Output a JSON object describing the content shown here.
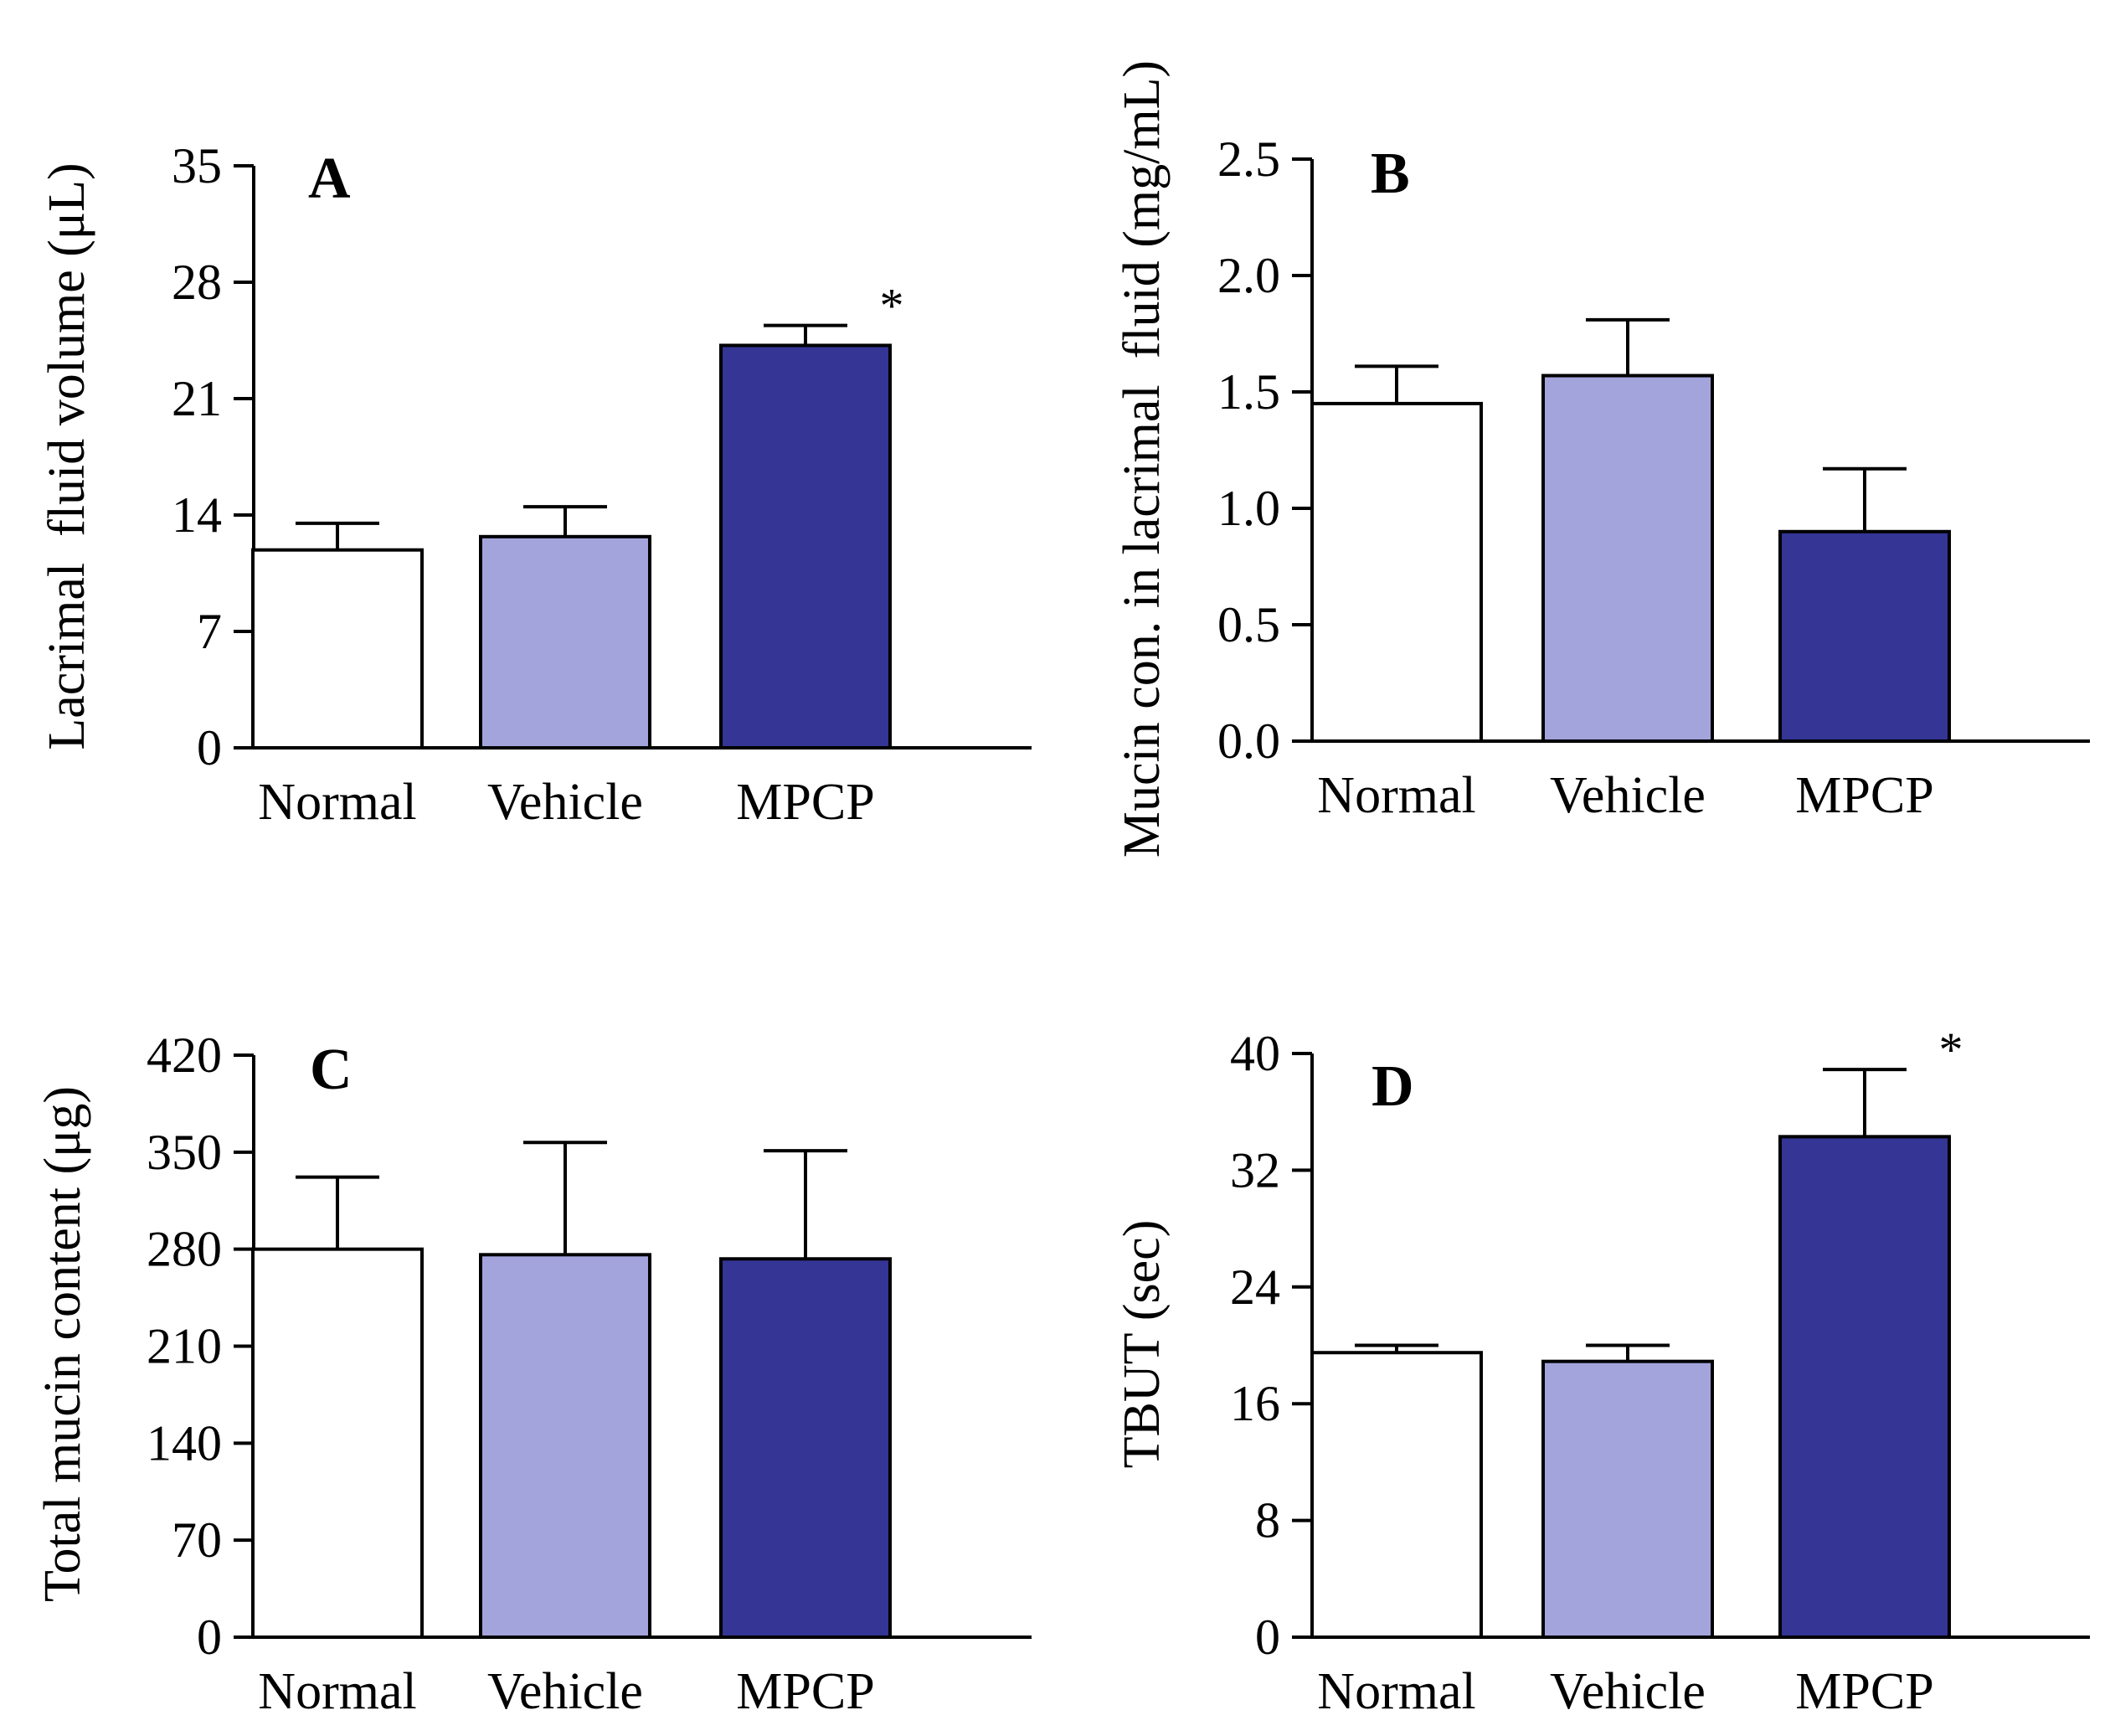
{
  "colors": {
    "normal": "#ffffff",
    "vehicle": "#a4a4dd",
    "mpcp": "#343595",
    "ink": "#000000"
  },
  "chart_data": [
    {
      "type": "bar",
      "panel": "A",
      "categories": [
        "Normal",
        "Vehicle",
        "MPCP"
      ],
      "values": [
        11.9,
        12.7,
        24.2
      ],
      "errors": [
        1.6,
        1.8,
        1.2
      ],
      "significance": [
        "",
        "",
        "*"
      ],
      "ylabel": "Lacrimal  fluid volume (μL)",
      "ylim": [
        0,
        35
      ],
      "yticks": [
        0,
        7,
        14,
        21,
        28,
        35
      ],
      "ytick_labels": [
        "0",
        "7",
        "14",
        "21",
        "28",
        "35"
      ]
    },
    {
      "type": "bar",
      "panel": "B",
      "categories": [
        "Normal",
        "Vehicle",
        "MPCP"
      ],
      "values": [
        1.45,
        1.57,
        0.9
      ],
      "errors": [
        0.16,
        0.24,
        0.27
      ],
      "significance": [
        "",
        "",
        ""
      ],
      "ylabel": "Mucin con. in lacrimal  fluid (mg/mL)",
      "ylim": [
        0,
        2.5
      ],
      "yticks": [
        0,
        0.5,
        1.0,
        1.5,
        2.0,
        2.5
      ],
      "ytick_labels": [
        "0.0",
        "0.5",
        "1.0",
        "1.5",
        "2.0",
        "2.5"
      ]
    },
    {
      "type": "bar",
      "panel": "C",
      "categories": [
        "Normal",
        "Vehicle",
        "MPCP"
      ],
      "values": [
        280,
        276,
        273
      ],
      "errors": [
        52,
        81,
        78
      ],
      "significance": [
        "",
        "",
        ""
      ],
      "ylabel": "Total mucin content (μg)",
      "ylim": [
        0,
        420
      ],
      "yticks": [
        0,
        70,
        140,
        210,
        280,
        350,
        420
      ],
      "ytick_labels": [
        "0",
        "70",
        "140",
        "210",
        "280",
        "350",
        "420"
      ]
    },
    {
      "type": "bar",
      "panel": "D",
      "categories": [
        "Normal",
        "Vehicle",
        "MPCP"
      ],
      "values": [
        19.5,
        18.9,
        34.3
      ],
      "errors": [
        0.5,
        1.1,
        4.6
      ],
      "significance": [
        "",
        "",
        "*"
      ],
      "ylabel": "TBUT (sec)",
      "ylim": [
        0,
        40
      ],
      "yticks": [
        0,
        8,
        16,
        24,
        32,
        40
      ],
      "ytick_labels": [
        "0",
        "8",
        "16",
        "24",
        "32",
        "40"
      ]
    }
  ]
}
